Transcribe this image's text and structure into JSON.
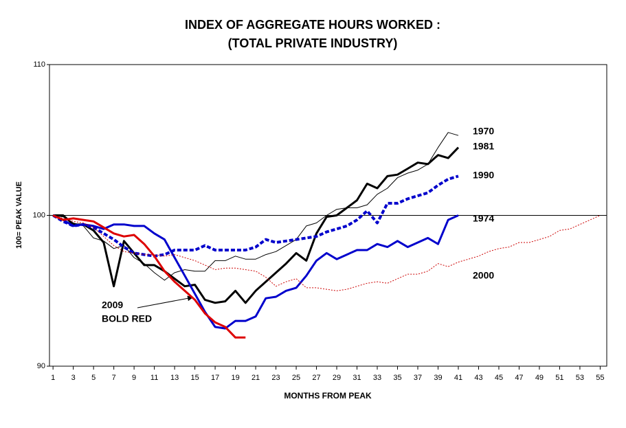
{
  "chart_data": {
    "type": "line",
    "title": [
      "INDEX OF AGGREGATE HOURS WORKED :",
      "(TOTAL PRIVATE INDUSTRY)"
    ],
    "x_label": "MONTHS FROM PEAK",
    "y_label": "100= PEAK VALUE",
    "annotation": "BOLD RED",
    "xlim": [
      0.65,
      55.65
    ],
    "ylim": [
      90,
      110
    ],
    "yticks": [
      90,
      100,
      110
    ],
    "xticks": [
      1,
      3,
      5,
      7,
      9,
      11,
      13,
      15,
      17,
      19,
      21,
      23,
      25,
      27,
      29,
      31,
      33,
      35,
      37,
      39,
      41,
      43,
      45,
      47,
      49,
      51,
      53,
      55
    ],
    "hline": 100,
    "series": [
      {
        "name": "1970",
        "color": "#000000",
        "width": 1,
        "dash": "solid",
        "x": [
          1,
          2,
          3,
          4,
          5,
          6,
          7,
          8,
          9,
          10,
          11,
          12,
          13,
          14,
          15,
          16,
          17,
          18,
          19,
          20,
          21,
          22,
          23,
          24,
          25,
          26,
          27,
          28,
          29,
          30,
          31,
          32,
          33,
          34,
          35,
          36,
          37,
          38,
          39,
          40,
          41
        ],
        "values": [
          100,
          99.9,
          99.5,
          99.3,
          98.5,
          98.3,
          97.8,
          98.0,
          97.2,
          96.8,
          96.2,
          95.7,
          96.2,
          96.4,
          96.3,
          96.3,
          97.0,
          97.0,
          97.3,
          97.1,
          97.1,
          97.4,
          97.6,
          98.0,
          98.4,
          99.3,
          99.5,
          100.0,
          100.4,
          100.5,
          100.5,
          100.7,
          101.4,
          101.8,
          102.5,
          102.8,
          103.0,
          103.4,
          104.5,
          105.5,
          105.3
        ]
      },
      {
        "name": "1981",
        "color": "#000000",
        "width": 3,
        "dash": "solid",
        "x": [
          1,
          2,
          3,
          4,
          5,
          6,
          7,
          8,
          9,
          10,
          11,
          12,
          13,
          14,
          15,
          16,
          17,
          18,
          19,
          20,
          21,
          22,
          23,
          24,
          25,
          26,
          27,
          28,
          29,
          30,
          31,
          32,
          33,
          34,
          35,
          36,
          37,
          38,
          39,
          40,
          41
        ],
        "values": [
          100,
          100,
          99.4,
          99.4,
          99.0,
          98.2,
          95.3,
          98.3,
          97.5,
          96.7,
          96.7,
          96.3,
          95.8,
          95.3,
          95.4,
          94.4,
          94.2,
          94.3,
          95.0,
          94.2,
          95.0,
          95.6,
          96.2,
          96.8,
          97.5,
          97.0,
          98.8,
          99.9,
          100.0,
          100.5,
          101.0,
          102.1,
          101.8,
          102.6,
          102.7,
          103.1,
          103.5,
          103.4,
          104.0,
          103.8,
          104.5
        ]
      },
      {
        "name": "1990",
        "color": "#0000cc",
        "width": 4,
        "dash": "dashed",
        "x": [
          1,
          2,
          3,
          4,
          5,
          6,
          7,
          8,
          9,
          10,
          11,
          12,
          13,
          14,
          15,
          16,
          17,
          18,
          19,
          20,
          21,
          22,
          23,
          24,
          25,
          26,
          27,
          28,
          29,
          30,
          31,
          32,
          33,
          34,
          35,
          36,
          37,
          38,
          39,
          40,
          41
        ],
        "values": [
          100,
          99.6,
          99.3,
          99.4,
          99.2,
          98.8,
          98.4,
          97.9,
          97.5,
          97.4,
          97.3,
          97.4,
          97.7,
          97.7,
          97.7,
          98.0,
          97.7,
          97.7,
          97.7,
          97.7,
          97.9,
          98.4,
          98.2,
          98.3,
          98.4,
          98.5,
          98.6,
          98.9,
          99.1,
          99.3,
          99.7,
          100.3,
          99.5,
          100.8,
          100.8,
          101.1,
          101.3,
          101.5,
          102.0,
          102.4,
          102.6
        ]
      },
      {
        "name": "1974",
        "color": "#0000cc",
        "width": 3,
        "dash": "solid",
        "x": [
          1,
          2,
          3,
          4,
          5,
          6,
          7,
          8,
          9,
          10,
          11,
          12,
          13,
          14,
          15,
          16,
          17,
          18,
          19,
          20,
          21,
          22,
          23,
          24,
          25,
          26,
          27,
          28,
          29,
          30,
          31,
          32,
          33,
          34,
          35,
          36,
          37,
          38,
          39,
          40,
          41
        ],
        "values": [
          100,
          99.7,
          99.3,
          99.4,
          99.3,
          99.1,
          99.4,
          99.4,
          99.3,
          99.3,
          98.8,
          98.4,
          97.2,
          96.0,
          94.8,
          93.6,
          92.6,
          92.5,
          93.0,
          93.0,
          93.3,
          94.5,
          94.6,
          95.0,
          95.2,
          96.0,
          97.0,
          97.5,
          97.1,
          97.4,
          97.7,
          97.7,
          98.1,
          97.9,
          98.3,
          97.9,
          98.2,
          98.5,
          98.1,
          99.7,
          100.0
        ]
      },
      {
        "name": "2000",
        "color": "#cc0000",
        "width": 1,
        "dash": "dotted",
        "x": [
          1,
          2,
          3,
          4,
          5,
          6,
          7,
          8,
          9,
          10,
          11,
          12,
          13,
          14,
          15,
          16,
          17,
          18,
          19,
          20,
          21,
          22,
          23,
          24,
          25,
          26,
          27,
          28,
          29,
          30,
          31,
          32,
          33,
          34,
          35,
          36,
          37,
          38,
          39,
          40,
          41,
          42,
          43,
          44,
          45,
          46,
          47,
          48,
          49,
          50,
          51,
          52,
          53,
          54,
          55
        ],
        "values": [
          100,
          99.8,
          99.6,
          99.5,
          99.2,
          98.6,
          98.0,
          97.6,
          97.5,
          97.4,
          97.4,
          97.3,
          97.4,
          97.2,
          97.0,
          96.7,
          96.4,
          96.5,
          96.5,
          96.4,
          96.3,
          95.9,
          95.3,
          95.6,
          95.8,
          95.2,
          95.2,
          95.1,
          95.0,
          95.1,
          95.3,
          95.5,
          95.6,
          95.5,
          95.8,
          96.1,
          96.1,
          96.3,
          96.8,
          96.6,
          96.9,
          97.1,
          97.3,
          97.6,
          97.8,
          97.9,
          98.2,
          98.2,
          98.4,
          98.6,
          99.0,
          99.1,
          99.4,
          99.7,
          100.0
        ]
      },
      {
        "name": "2009",
        "color": "#dd0000",
        "width": 3,
        "dash": "solid",
        "x": [
          1,
          2,
          3,
          4,
          5,
          6,
          7,
          8,
          9,
          10,
          11,
          12,
          13,
          14,
          15,
          16,
          17,
          18,
          19,
          20
        ],
        "values": [
          100,
          99.7,
          99.8,
          99.7,
          99.6,
          99.2,
          98.8,
          98.6,
          98.7,
          98.1,
          97.3,
          96.3,
          95.6,
          95.0,
          94.4,
          93.5,
          92.9,
          92.6,
          91.9,
          91.9
        ]
      }
    ]
  }
}
